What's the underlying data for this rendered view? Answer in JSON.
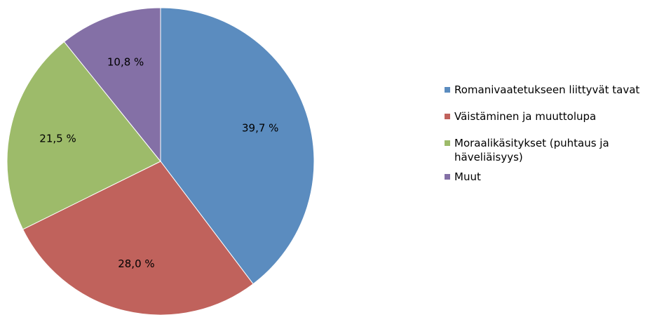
{
  "chart_data": {
    "type": "pie",
    "categories": [
      "Romanivaatetukseen liittyvät tavat",
      "Väistäminen ja muuttolupa",
      "Moraalikäsitykset (puhtaus ja häveliäisyys)",
      "Muut"
    ],
    "values": [
      39.7,
      28.0,
      21.5,
      10.8
    ],
    "value_labels": [
      "39,7 %",
      "28,0 %",
      "21,5 %",
      "10,8 %"
    ],
    "colors": [
      "#5b8cbf",
      "#c0625c",
      "#9dbb6a",
      "#8470a6"
    ],
    "start_angle_deg": 0,
    "direction": "clockwise",
    "legend_position": "right"
  }
}
